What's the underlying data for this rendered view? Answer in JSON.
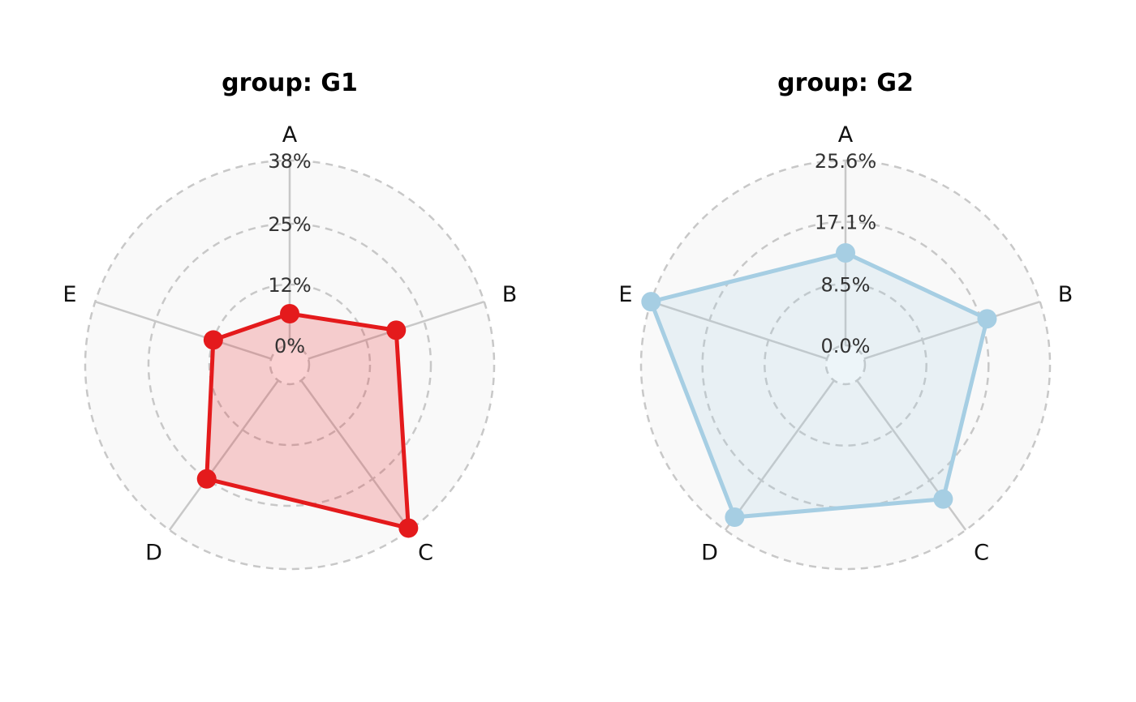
{
  "chart_data": [
    {
      "type": "radar",
      "title": "group: G1",
      "categories": [
        "A",
        "B",
        "C",
        "D",
        "E"
      ],
      "values": [
        6.5,
        19,
        37.5,
        25,
        12.5
      ],
      "unit": "%",
      "tick_labels": [
        "0%",
        "12%",
        "25%",
        "38%"
      ],
      "tick_values": [
        0,
        12.5,
        25,
        38
      ],
      "rmax": 38,
      "color": "#e41a1c"
    },
    {
      "type": "radar",
      "title": "group: G2",
      "categories": [
        "A",
        "B",
        "C",
        "D",
        "E"
      ],
      "values": [
        12.8,
        17.9,
        20.3,
        23.4,
        25.6
      ],
      "unit": "%",
      "tick_labels": [
        "0.0%",
        "8.5%",
        "17.1%",
        "25.6%"
      ],
      "tick_values": [
        0,
        8.5,
        17.1,
        25.6
      ],
      "rmax": 25.6,
      "color": "#a6cee3"
    }
  ]
}
